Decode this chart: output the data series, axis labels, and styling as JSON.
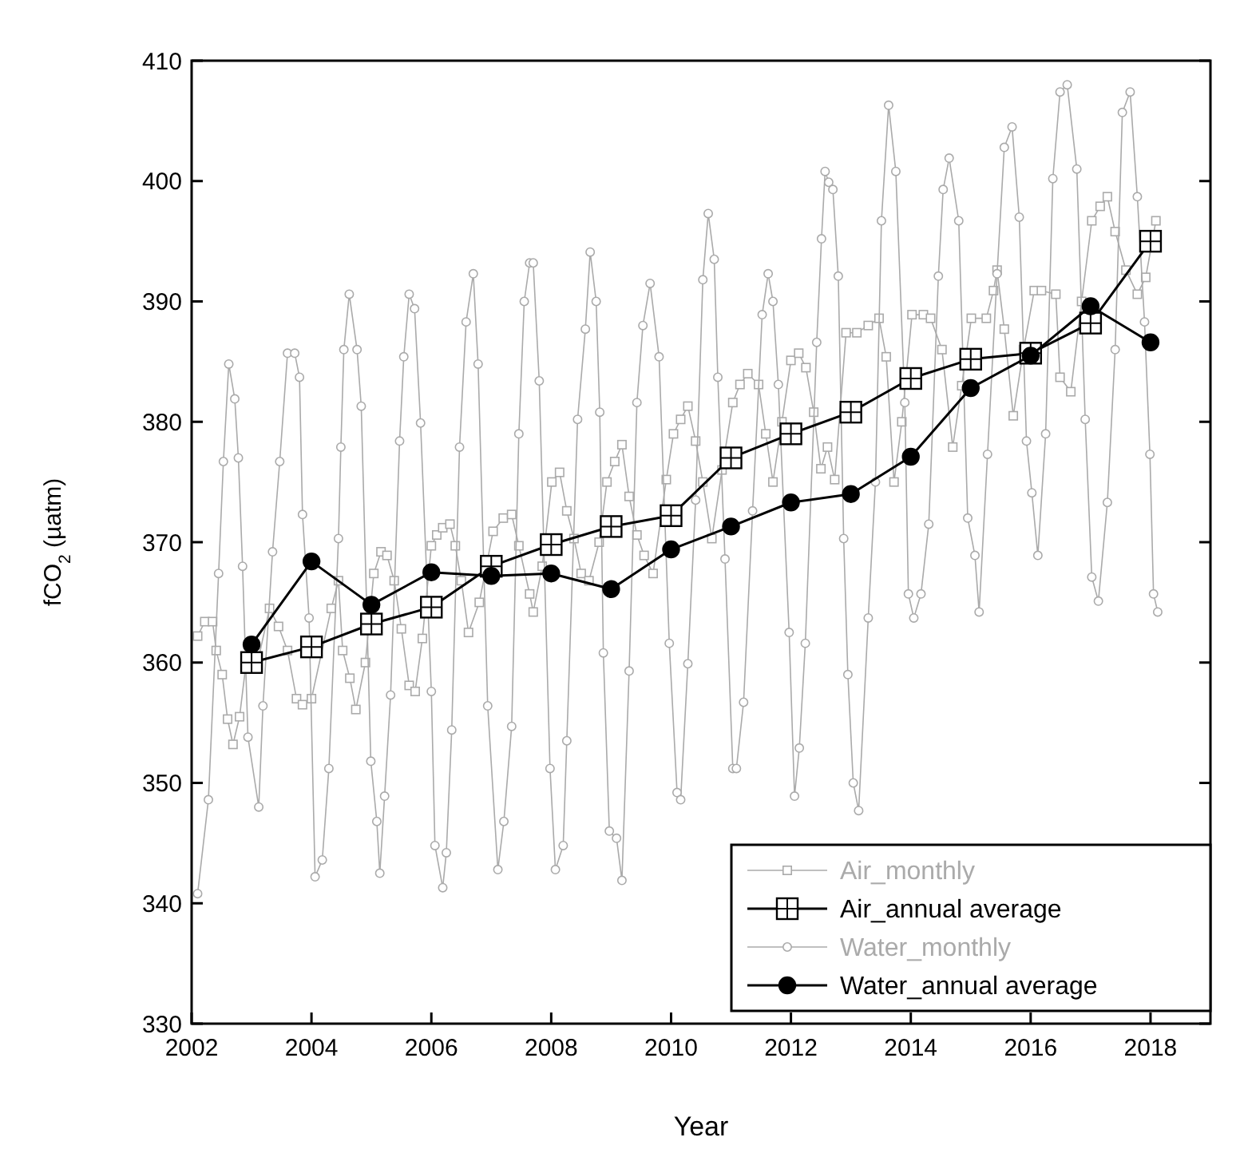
{
  "chart_data": {
    "type": "line",
    "xlabel": "Year",
    "ylabel": "fCO$_{2}$ (µatm)",
    "xlim": [
      2002,
      2019
    ],
    "ylim": [
      330,
      410
    ],
    "xticks": [
      2002,
      2004,
      2006,
      2008,
      2010,
      2012,
      2014,
      2016,
      2018
    ],
    "yticks": [
      330,
      340,
      350,
      360,
      370,
      380,
      390,
      400,
      410
    ],
    "legend": "bottom right",
    "grid": false,
    "series": [
      {
        "name": "Air_monthly",
        "color": "#aaaaaa",
        "marker": "square",
        "x": [
          2002.1,
          2002.22,
          2002.35,
          2002.41,
          2002.51,
          2002.6,
          2002.69,
          2002.8,
          2002.9,
          2003.1,
          2003.3,
          2003.45,
          2003.6,
          2003.75,
          2003.85,
          2004.0,
          2004.33,
          2004.45,
          2004.52,
          2004.64,
          2004.74,
          2004.9,
          2005.04,
          2005.16,
          2005.26,
          2005.38,
          2005.5,
          2005.63,
          2005.73,
          2005.85,
          2006.0,
          2006.09,
          2006.19,
          2006.31,
          2006.4,
          2006.5,
          2006.62,
          2006.8,
          2007.03,
          2007.2,
          2007.34,
          2007.46,
          2007.64,
          2007.7,
          2007.85,
          2008.01,
          2008.14,
          2008.26,
          2008.38,
          2008.5,
          2008.63,
          2008.8,
          2008.93,
          2009.06,
          2009.18,
          2009.3,
          2009.43,
          2009.55,
          2009.7,
          2009.92,
          2010.04,
          2010.16,
          2010.28,
          2010.41,
          2010.53,
          2010.68,
          2010.85,
          2011.03,
          2011.15,
          2011.28,
          2011.46,
          2011.58,
          2011.7,
          2011.85,
          2012.0,
          2012.13,
          2012.25,
          2012.38,
          2012.5,
          2012.61,
          2012.73,
          2012.92,
          2013.1,
          2013.29,
          2013.47,
          2013.59,
          2013.72,
          2013.85,
          2014.02,
          2014.21,
          2014.33,
          2014.52,
          2014.7,
          2014.85,
          2015.01,
          2015.26,
          2015.38,
          2015.44,
          2015.56,
          2015.71,
          2015.88,
          2016.06,
          2016.18,
          2016.42,
          2016.49,
          2016.67,
          2016.85,
          2017.02,
          2017.16,
          2017.28,
          2017.41,
          2017.59,
          2017.78,
          2017.92,
          2018.09
        ],
        "values": [
          362.2,
          363.4,
          363.4,
          361,
          359,
          355.3,
          353.2,
          355.5,
          359.6,
          360,
          364.5,
          363,
          361,
          357,
          356.5,
          357,
          364.5,
          366.8,
          361,
          358.7,
          356.1,
          360,
          367.4,
          369.2,
          368.9,
          366.8,
          362.8,
          358.1,
          357.6,
          362,
          369.7,
          370.6,
          371.2,
          371.5,
          369.7,
          366.8,
          362.5,
          365,
          370.9,
          372,
          372.3,
          369.7,
          365.7,
          364.2,
          368,
          375,
          375.8,
          372.6,
          370.3,
          367.4,
          366.8,
          370,
          375,
          376.7,
          378.1,
          373.8,
          370.6,
          368.9,
          367.4,
          375.2,
          379,
          380.2,
          381.3,
          378.4,
          375,
          370.3,
          376,
          381.6,
          383.1,
          384,
          383.1,
          379,
          375,
          380,
          385.1,
          385.7,
          384.5,
          380.8,
          376.1,
          377.9,
          375.2,
          387.4,
          387.4,
          388,
          388.6,
          385.4,
          375,
          380,
          388.9,
          388.9,
          388.6,
          386,
          377.9,
          383,
          388.6,
          388.6,
          390.9,
          392.6,
          387.7,
          380.5,
          386,
          390.9,
          390.9,
          390.6,
          383.7,
          382.5,
          390,
          396.7,
          397.9,
          398.7,
          395.8,
          392.6,
          390.6,
          392,
          396.7
        ]
      },
      {
        "name": "Air_annual average",
        "color": "#000000",
        "marker": "square",
        "x": [
          2003,
          2004,
          2005,
          2006,
          2007,
          2008,
          2009,
          2010,
          2011,
          2012,
          2013,
          2014,
          2015,
          2016,
          2017,
          2018
        ],
        "values": [
          360,
          361.3,
          363.2,
          364.6,
          368,
          369.8,
          371.3,
          372.2,
          377,
          379,
          380.8,
          383.6,
          385.2,
          385.7,
          388.2,
          395
        ]
      },
      {
        "name": "Water_monthly",
        "color": "#aaaaaa",
        "marker": "circle",
        "x": [
          2002.1,
          2002.28,
          2002.45,
          2002.53,
          2002.62,
          2002.72,
          2002.78,
          2002.85,
          2002.94,
          2003.12,
          2003.19,
          2003.35,
          2003.47,
          2003.6,
          2003.72,
          2003.8,
          2003.85,
          2003.96,
          2004.06,
          2004.18,
          2004.29,
          2004.45,
          2004.49,
          2004.54,
          2004.63,
          2004.76,
          2004.83,
          2004.99,
          2005.09,
          2005.14,
          2005.22,
          2005.32,
          2005.47,
          2005.54,
          2005.63,
          2005.72,
          2005.82,
          2006.0,
          2006.06,
          2006.19,
          2006.25,
          2006.34,
          2006.47,
          2006.58,
          2006.7,
          2006.78,
          2006.94,
          2007.11,
          2007.21,
          2007.34,
          2007.46,
          2007.55,
          2007.64,
          2007.7,
          2007.8,
          2007.98,
          2008.07,
          2008.2,
          2008.26,
          2008.44,
          2008.57,
          2008.65,
          2008.75,
          2008.81,
          2008.87,
          2008.97,
          2009.09,
          2009.18,
          2009.3,
          2009.43,
          2009.53,
          2009.65,
          2009.8,
          2009.97,
          2010.1,
          2010.16,
          2010.28,
          2010.41,
          2010.53,
          2010.62,
          2010.72,
          2010.78,
          2010.9,
          2011.03,
          2011.09,
          2011.21,
          2011.36,
          2011.52,
          2011.62,
          2011.7,
          2011.79,
          2011.97,
          2012.06,
          2012.14,
          2012.24,
          2012.43,
          2012.51,
          2012.57,
          2012.63,
          2012.7,
          2012.79,
          2012.88,
          2012.95,
          2013.04,
          2013.13,
          2013.29,
          2013.41,
          2013.51,
          2013.63,
          2013.75,
          2013.9,
          2013.96,
          2014.05,
          2014.17,
          2014.3,
          2014.46,
          2014.54,
          2014.64,
          2014.8,
          2014.95,
          2015.07,
          2015.14,
          2015.28,
          2015.44,
          2015.56,
          2015.69,
          2015.81,
          2015.93,
          2016.02,
          2016.12,
          2016.25,
          2016.37,
          2016.49,
          2016.61,
          2016.77,
          2016.91,
          2017.02,
          2017.13,
          2017.28,
          2017.41,
          2017.53,
          2017.66,
          2017.78,
          2017.9,
          2017.99,
          2018.05,
          2018.12
        ],
        "values": [
          340.8,
          348.6,
          367.4,
          376.7,
          384.8,
          381.9,
          377,
          368,
          353.8,
          348,
          356.4,
          369.2,
          376.7,
          385.7,
          385.7,
          383.7,
          372.3,
          363.7,
          342.2,
          343.6,
          351.2,
          370.3,
          377.9,
          386,
          390.6,
          386,
          381.3,
          351.8,
          346.8,
          342.5,
          348.9,
          357.3,
          378.4,
          385.4,
          390.6,
          389.4,
          379.9,
          357.6,
          344.8,
          341.3,
          344.2,
          354.4,
          377.9,
          388.3,
          392.3,
          384.8,
          356.4,
          342.8,
          346.8,
          354.7,
          379,
          390,
          393.2,
          393.2,
          383.4,
          351.2,
          342.8,
          344.8,
          353.5,
          380.2,
          387.7,
          394.1,
          390,
          380.8,
          360.8,
          346,
          345.4,
          341.9,
          359.3,
          381.6,
          388,
          391.5,
          385.4,
          361.6,
          349.2,
          348.6,
          359.9,
          373.5,
          391.8,
          397.3,
          393.5,
          383.7,
          368.6,
          351.2,
          351.2,
          356.7,
          372.6,
          388.9,
          392.3,
          390,
          383.1,
          362.5,
          348.9,
          352.9,
          361.6,
          386.6,
          395.2,
          400.8,
          399.9,
          399.3,
          392.1,
          370.3,
          359,
          350,
          347.7,
          363.7,
          375,
          396.7,
          406.3,
          400.8,
          381.6,
          365.7,
          363.7,
          365.7,
          371.5,
          392.1,
          399.3,
          401.9,
          396.7,
          372,
          368.9,
          364.2,
          377.3,
          392.3,
          402.8,
          404.5,
          397,
          378.4,
          374.1,
          368.9,
          379,
          400.2,
          407.4,
          408,
          401,
          380.2,
          367.1,
          365.1,
          373.3,
          386,
          405.7,
          407.4,
          398.7,
          388.3,
          377.3,
          365.7,
          364.2
        ]
      },
      {
        "name": "Water_annual average",
        "color": "#000000",
        "marker": "circle",
        "x": [
          2003,
          2004,
          2005,
          2006,
          2007,
          2008,
          2009,
          2010,
          2011,
          2012,
          2013,
          2014,
          2015,
          2016,
          2017,
          2018
        ],
        "values": [
          361.5,
          368.4,
          364.8,
          367.5,
          367.2,
          367.4,
          366.1,
          369.4,
          371.3,
          373.3,
          374,
          377.1,
          382.8,
          385.5,
          389.6,
          386.6
        ]
      }
    ]
  }
}
